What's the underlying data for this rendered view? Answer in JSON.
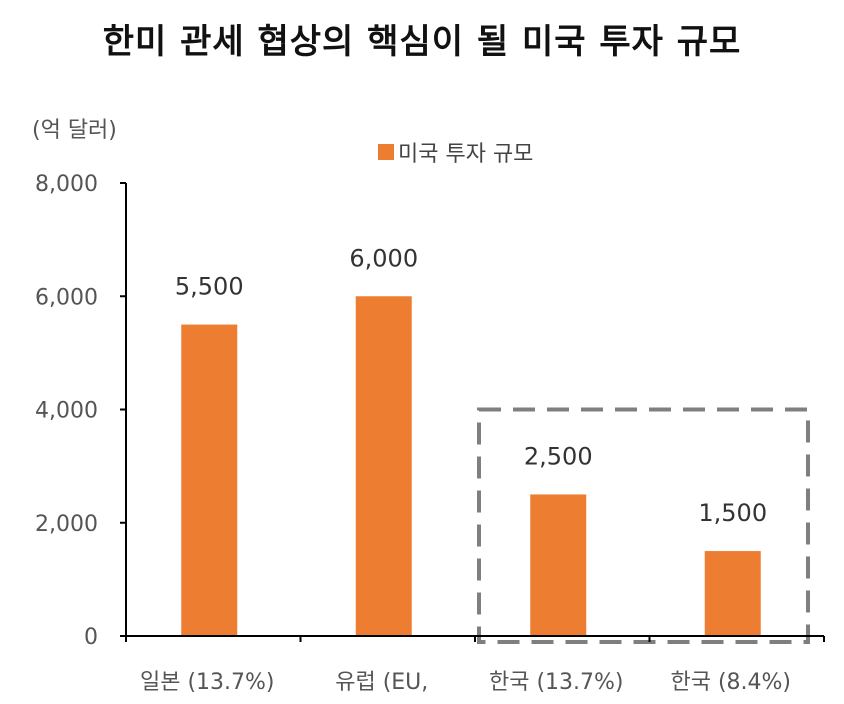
{
  "chart_data": {
    "type": "bar",
    "title": "한미 관세 협상의 핵심이 될 미국 투자 규모",
    "ylabel": "(억 달러)",
    "xlabel": "",
    "categories": [
      "일본 (13.7%)",
      "유럽 (EU,",
      "한국 (13.7%)",
      "한국 (8.4%)"
    ],
    "series": [
      {
        "name": "미국 투자 규모",
        "values": [
          5500,
          6000,
          2500,
          1500
        ],
        "data_labels": [
          "5,500",
          "6,000",
          "2,500",
          "1,500"
        ]
      }
    ],
    "ylim": [
      0,
      8000
    ],
    "yticks": [
      0,
      2000,
      4000,
      6000,
      8000
    ],
    "ytick_labels": [
      "0",
      "2,000",
      "4,000",
      "6,000",
      "8,000"
    ],
    "grid": false,
    "legend_position": "top-center",
    "highlight_box_categories": [
      "한국 (13.7%)",
      "한국 (8.4%)"
    ],
    "colors": {
      "bar": "#ED7D31",
      "axis": "#000000",
      "highlight_box": "#7F7F7F"
    }
  }
}
